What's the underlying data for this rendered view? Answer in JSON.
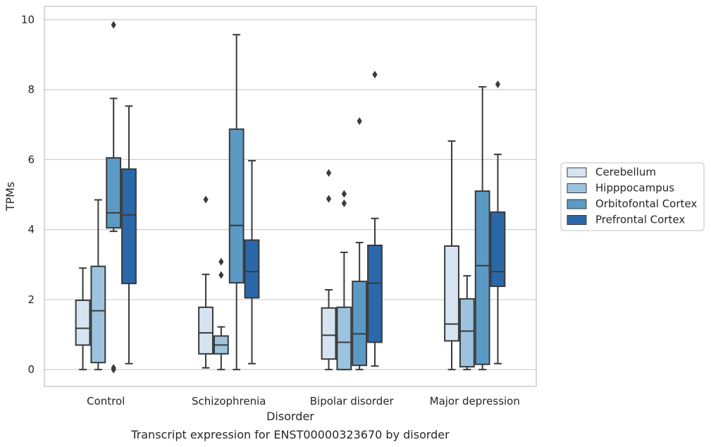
{
  "chart_data": {
    "type": "box",
    "xlabel": "Disorder",
    "ylabel": "TPMs",
    "caption": "Transcript expression for ENST00000323670 by disorder",
    "ylim": [
      -0.48,
      10.38
    ],
    "yticks": [
      0,
      2,
      4,
      6,
      8,
      10
    ],
    "categories": [
      "Control",
      "Schizophrenia",
      "Bipolar disorder",
      "Major depression"
    ],
    "grid": "horizontal",
    "legend_position": "right",
    "series": [
      {
        "name": "Cerebellum",
        "color": "#d6e4f2",
        "boxes": [
          {
            "whislo": 0.0,
            "q1": 0.7,
            "med": 1.18,
            "q3": 1.98,
            "whishi": 2.9,
            "fliers": []
          },
          {
            "whislo": 0.05,
            "q1": 0.45,
            "med": 1.05,
            "q3": 1.78,
            "whishi": 2.72,
            "fliers": [
              4.86
            ]
          },
          {
            "whislo": 0.0,
            "q1": 0.3,
            "med": 0.98,
            "q3": 1.76,
            "whishi": 2.28,
            "fliers": [
              4.88,
              5.62
            ]
          },
          {
            "whislo": 0.0,
            "q1": 0.82,
            "med": 1.3,
            "q3": 3.53,
            "whishi": 6.53,
            "fliers": []
          }
        ]
      },
      {
        "name": "Hipppocampus",
        "color": "#9dc4de",
        "boxes": [
          {
            "whislo": 0.0,
            "q1": 0.2,
            "med": 1.68,
            "q3": 2.95,
            "whishi": 4.85,
            "fliers": []
          },
          {
            "whislo": 0.0,
            "q1": 0.45,
            "med": 0.7,
            "q3": 0.96,
            "whishi": 1.22,
            "fliers": [
              2.7,
              3.08
            ]
          },
          {
            "whislo": 0.0,
            "q1": 0.0,
            "med": 0.78,
            "q3": 1.78,
            "whishi": 3.35,
            "fliers": [
              4.75,
              5.02
            ]
          },
          {
            "whislo": 0.0,
            "q1": 0.08,
            "med": 1.1,
            "q3": 2.02,
            "whishi": 2.68,
            "fliers": []
          }
        ]
      },
      {
        "name": "Orbitofontal Cortex",
        "color": "#5b9ac4",
        "boxes": [
          {
            "whislo": 3.95,
            "q1": 4.05,
            "med": 4.48,
            "q3": 6.05,
            "whishi": 7.75,
            "fliers": [
              9.85,
              0.0,
              0.05
            ]
          },
          {
            "whislo": 0.0,
            "q1": 2.48,
            "med": 4.12,
            "q3": 6.87,
            "whishi": 9.57,
            "fliers": []
          },
          {
            "whislo": 0.0,
            "q1": 0.12,
            "med": 1.02,
            "q3": 2.52,
            "whishi": 3.63,
            "fliers": [
              7.1
            ]
          },
          {
            "whislo": 0.0,
            "q1": 0.15,
            "med": 2.97,
            "q3": 5.1,
            "whishi": 8.08,
            "fliers": []
          }
        ]
      },
      {
        "name": "Prefrontal Cortex",
        "color": "#2a68aa",
        "boxes": [
          {
            "whislo": 0.17,
            "q1": 2.46,
            "med": 4.42,
            "q3": 5.73,
            "whishi": 7.53,
            "fliers": []
          },
          {
            "whislo": 0.17,
            "q1": 2.05,
            "med": 2.8,
            "q3": 3.7,
            "whishi": 5.97,
            "fliers": []
          },
          {
            "whislo": 0.1,
            "q1": 0.78,
            "med": 2.47,
            "q3": 3.55,
            "whishi": 4.32,
            "fliers": [
              8.43
            ]
          },
          {
            "whislo": 0.17,
            "q1": 2.38,
            "med": 2.8,
            "q3": 4.5,
            "whishi": 6.15,
            "fliers": [
              8.15
            ]
          }
        ]
      }
    ]
  }
}
